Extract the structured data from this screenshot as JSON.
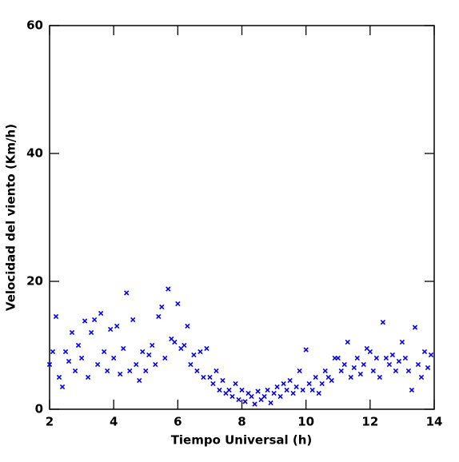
{
  "chart_data": {
    "type": "scatter",
    "xlabel": "Tiempo Universal (h)",
    "ylabel": "Velocidad del viento (Km/h)",
    "color": "#0000ff",
    "xlim": [
      2,
      14
    ],
    "xticks": [
      2,
      4,
      6,
      8,
      10,
      12,
      14
    ],
    "ylim": [
      0,
      60
    ],
    "yticks": [
      0,
      20,
      40,
      60
    ],
    "x": [
      2.0,
      2.1,
      2.2,
      2.3,
      2.4,
      2.5,
      2.6,
      2.7,
      2.8,
      2.9,
      3.0,
      3.1,
      3.2,
      3.3,
      3.4,
      3.5,
      3.6,
      3.7,
      3.8,
      3.9,
      4.0,
      4.1,
      4.2,
      4.3,
      4.4,
      4.5,
      4.6,
      4.7,
      4.8,
      4.9,
      5.0,
      5.1,
      5.2,
      5.3,
      5.4,
      5.5,
      5.6,
      5.7,
      5.8,
      5.9,
      6.0,
      6.1,
      6.2,
      6.3,
      6.4,
      6.5,
      6.6,
      6.7,
      6.8,
      6.9,
      7.0,
      7.1,
      7.2,
      7.3,
      7.4,
      7.5,
      7.6,
      7.7,
      7.8,
      7.9,
      8.0,
      8.1,
      8.2,
      8.3,
      8.4,
      8.5,
      8.6,
      8.7,
      8.8,
      8.9,
      9.0,
      9.1,
      9.2,
      9.3,
      9.4,
      9.5,
      9.6,
      9.7,
      9.8,
      9.9,
      10.0,
      10.1,
      10.2,
      10.3,
      10.4,
      10.5,
      10.6,
      10.7,
      10.8,
      10.9,
      11.0,
      11.1,
      11.2,
      11.3,
      11.4,
      11.5,
      11.6,
      11.7,
      11.8,
      11.9,
      12.0,
      12.1,
      12.2,
      12.3,
      12.4,
      12.5,
      12.6,
      12.7,
      12.8,
      12.9,
      13.0,
      13.1,
      13.2,
      13.3,
      13.4,
      13.5,
      13.6,
      13.7,
      13.8,
      13.9
    ],
    "values": [
      7,
      9,
      14.5,
      5,
      3.5,
      9,
      7.5,
      12,
      6,
      10,
      8,
      13.8,
      5,
      12,
      14,
      7,
      15,
      9,
      6,
      12.5,
      8,
      13,
      5.5,
      9.5,
      18.2,
      6,
      14,
      7,
      4.5,
      9,
      6,
      8.5,
      10,
      7,
      14.5,
      16,
      8,
      18.8,
      11,
      10.5,
      16.5,
      9.5,
      10,
      13,
      7,
      8.5,
      6,
      9,
      5,
      9.5,
      5,
      4,
      6,
      3,
      4.5,
      2.5,
      3,
      2,
      4,
      1.5,
      3,
      1.2,
      2.5,
      2,
      0.8,
      2.8,
      1.5,
      2,
      3,
      1,
      2.5,
      3.5,
      2,
      4,
      3,
      4.5,
      2.5,
      3.5,
      6,
      3,
      9.3,
      4,
      3,
      5,
      2.5,
      4,
      6,
      5,
      4.5,
      8,
      8,
      6,
      7,
      10.5,
      5,
      6.5,
      8,
      5.5,
      7,
      9.5,
      9,
      6,
      8,
      5,
      13.6,
      8,
      7,
      8.5,
      6,
      7.5,
      10.5,
      8,
      6,
      3,
      12.8,
      7,
      5,
      9,
      6.5,
      8.5
    ]
  }
}
